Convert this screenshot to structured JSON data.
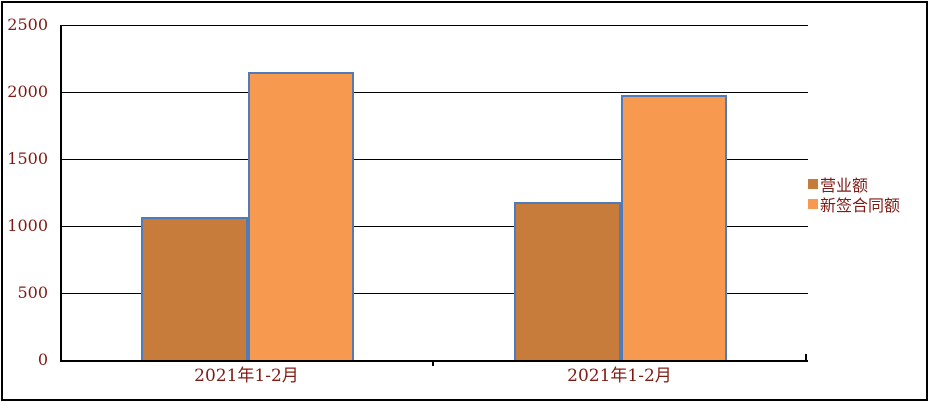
{
  "chart_data": {
    "type": "bar",
    "title": "",
    "xlabel": "",
    "ylabel": "",
    "categories": [
      "2021年1-2月",
      "2021年1-2月"
    ],
    "series": [
      {
        "name": "营业额",
        "color": "#c87c3c",
        "values": [
          1070,
          1180
        ]
      },
      {
        "name": "新签合同额",
        "color": "#f79a50",
        "values": [
          2150,
          1975
        ]
      }
    ],
    "ylim": [
      0,
      2500
    ],
    "yticks": [
      0,
      500,
      1000,
      1500,
      2000,
      2500
    ],
    "grid": true,
    "legend_position": "right",
    "colors": {
      "bar_border": "#4f7cb8",
      "axis_text": "#7f1b15",
      "gridline": "#000000",
      "frame": "#000000",
      "background": "#ffffff"
    }
  }
}
